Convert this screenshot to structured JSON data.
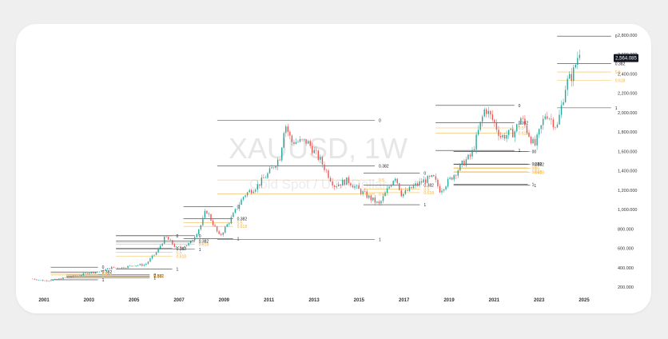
{
  "chart_data": {
    "type": "candlestick",
    "watermark": {
      "symbol": "XAUUSD, 1W",
      "description": "Gold Spot / U.S. Dollar"
    },
    "x_ticks": [
      "2001",
      "2003",
      "2005",
      "2007",
      "2009",
      "2011",
      "2013",
      "2015",
      "2017",
      "2019",
      "2021",
      "2023",
      "2025"
    ],
    "y_ticks": [
      "200.000",
      "400.000",
      "600.000",
      "800.000",
      "1,000.000",
      "1,200.000",
      "1,400.000",
      "1,600.000",
      "1,800.000",
      "2,000.000",
      "2,200.000",
      "2,400.000",
      "2,600.000",
      "2,800.000"
    ],
    "ylim": [
      150,
      2860
    ],
    "last_price": {
      "value": 2564.085,
      "label": "2,564.085"
    },
    "colors": {
      "up": "#26a69a",
      "down": "#ef5350",
      "fib_line": "#222222",
      "fib_gold": "#f2b13c",
      "price_label_bg": "#131722"
    },
    "series": [
      {
        "name": "XAUUSD",
        "x": [
          2000.5,
          2001.0,
          2001.5,
          2002.0,
          2002.5,
          2003.0,
          2003.5,
          2004.0,
          2004.5,
          2005.0,
          2005.5,
          2006.0,
          2006.4,
          2006.9,
          2007.5,
          2008.0,
          2008.2,
          2008.8,
          2009.3,
          2009.9,
          2010.5,
          2011.0,
          2011.5,
          2011.7,
          2012.0,
          2012.7,
          2013.3,
          2013.9,
          2014.5,
          2015.0,
          2015.9,
          2016.6,
          2016.9,
          2017.5,
          2017.9,
          2018.3,
          2018.6,
          2019.0,
          2019.7,
          2020.0,
          2020.6,
          2021.0,
          2021.3,
          2021.9,
          2022.2,
          2022.8,
          2023.3,
          2023.8,
          2024.2,
          2024.5,
          2024.8
        ],
        "values": [
          285,
          265,
          275,
          300,
          315,
          350,
          360,
          400,
          400,
          425,
          430,
          560,
          720,
          600,
          650,
          850,
          1000,
          720,
          900,
          1150,
          1250,
          1380,
          1550,
          1900,
          1700,
          1700,
          1500,
          1250,
          1300,
          1200,
          1050,
          1350,
          1150,
          1250,
          1300,
          1330,
          1200,
          1300,
          1500,
          1560,
          2050,
          1900,
          1750,
          1800,
          1950,
          1650,
          2000,
          1850,
          2300,
          2400,
          2650
        ]
      }
    ],
    "fib_sets": [
      {
        "x_start": 2002.0,
        "x_end": 2005.7,
        "high": 325,
        "low": 295,
        "levels": [
          {
            "label": "0"
          },
          {
            "label": "0.382"
          },
          {
            "label": "0.5"
          },
          {
            "label": "0.618"
          },
          {
            "label": "1"
          }
        ]
      },
      {
        "x_start": 2001.3,
        "x_end": 2003.4,
        "high": 405,
        "low": 275,
        "levels": [
          {
            "label": "0"
          },
          {
            "label": "0.382"
          },
          {
            "label": "0.5"
          },
          {
            "label": "0.618"
          },
          {
            "label": "1"
          }
        ]
      },
      {
        "x_start": 2004.2,
        "x_end": 2006.7,
        "high": 730,
        "low": 385,
        "levels": [
          {
            "label": "0"
          },
          {
            "label": "0.382"
          },
          {
            "label": "0.5"
          },
          {
            "label": "0.618"
          },
          {
            "label": "1"
          }
        ]
      },
      {
        "x_start": 2004.2,
        "x_end": 2007.7,
        "high": 730,
        "low": 590,
        "levels": [
          {
            "label": "0"
          },
          {
            "label": "0.382"
          },
          {
            "label": "0.5"
          },
          {
            "label": "0.618"
          },
          {
            "label": "1"
          }
        ]
      },
      {
        "x_start": 2007.2,
        "x_end": 2009.4,
        "high": 1030,
        "low": 700,
        "levels": [
          {
            "label": "0"
          },
          {
            "label": "0.382"
          },
          {
            "label": "0.5"
          },
          {
            "label": "0.618"
          },
          {
            "label": "1"
          }
        ]
      },
      {
        "x_start": 2008.7,
        "x_end": 2015.7,
        "high": 1920,
        "low": 690,
        "levels": [
          {
            "label": "0"
          },
          {
            "label": "0.382"
          },
          {
            "label": "0.5"
          },
          {
            "label": "0.618"
          },
          {
            "label": "1"
          }
        ]
      },
      {
        "x_start": 2015.2,
        "x_end": 2017.7,
        "high": 1375,
        "low": 1050,
        "levels": [
          {
            "label": "0"
          },
          {
            "label": "0.382"
          },
          {
            "label": "0.5"
          },
          {
            "label": "0.618"
          },
          {
            "label": "1"
          }
        ]
      },
      {
        "x_start": 2018.4,
        "x_end": 2021.9,
        "high": 2075,
        "low": 1610,
        "levels": [
          {
            "label": "0"
          },
          {
            "label": "0.382"
          },
          {
            "label": "0.5"
          },
          {
            "label": "0.618"
          },
          {
            "label": "1"
          }
        ]
      },
      {
        "x_start": 2019.2,
        "x_end": 2022.5,
        "high": 1600,
        "low": 1260,
        "levels": [
          {
            "label": "0"
          },
          {
            "label": "0.382"
          },
          {
            "label": "0.5"
          },
          {
            "label": "0.618"
          },
          {
            "label": "1"
          }
        ]
      },
      {
        "x_start": 2019.2,
        "x_end": 2022.6,
        "high": 1600,
        "low": 1250,
        "levels": [
          {
            "label": "0"
          },
          {
            "label": "0.382"
          },
          {
            "label": "0.5"
          },
          {
            "label": "0.618"
          },
          {
            "label": "1"
          }
        ]
      },
      {
        "x_start": 2023.8,
        "x_end": 2026.2,
        "high": 2790,
        "low": 2050,
        "levels": [
          {
            "label": "0"
          },
          {
            "label": "0.382"
          },
          {
            "label": "0.5"
          },
          {
            "label": "0.618"
          },
          {
            "label": "1"
          }
        ]
      }
    ]
  }
}
